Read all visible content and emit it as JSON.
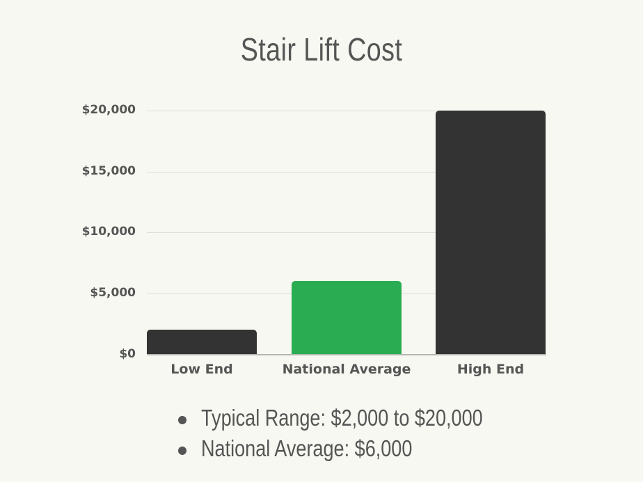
{
  "title": "Stair Lift Cost",
  "colors": {
    "background": "#f7f8f1",
    "bar_dark": "#333333",
    "bar_accent": "#2aad52",
    "text": "#555555",
    "grid": "#dcddd6"
  },
  "axis": {
    "y_ticks": [
      "$20,000",
      "$15,000",
      "$10,000",
      "$5,000",
      "$0"
    ]
  },
  "bars": [
    {
      "label": "Low End",
      "value": 2000,
      "color": "#333333"
    },
    {
      "label": "National Average",
      "value": 6000,
      "color": "#2aad52"
    },
    {
      "label": "High End",
      "value": 20000,
      "color": "#333333"
    }
  ],
  "notes": [
    "Typical Range: $2,000 to $20,000",
    "National Average: $6,000"
  ],
  "chart_data": {
    "type": "bar",
    "title": "Stair Lift Cost",
    "categories": [
      "Low End",
      "National Average",
      "High End"
    ],
    "values": [
      2000,
      6000,
      20000
    ],
    "xlabel": "",
    "ylabel": "",
    "ylim": [
      0,
      20000
    ],
    "y_ticks": [
      0,
      5000,
      10000,
      15000,
      20000
    ],
    "y_tick_labels": [
      "$0",
      "$5,000",
      "$10,000",
      "$15,000",
      "$20,000"
    ],
    "grid": true,
    "legend": null,
    "annotations": [
      "Typical Range: $2,000 to $20,000",
      "National Average: $6,000"
    ]
  }
}
